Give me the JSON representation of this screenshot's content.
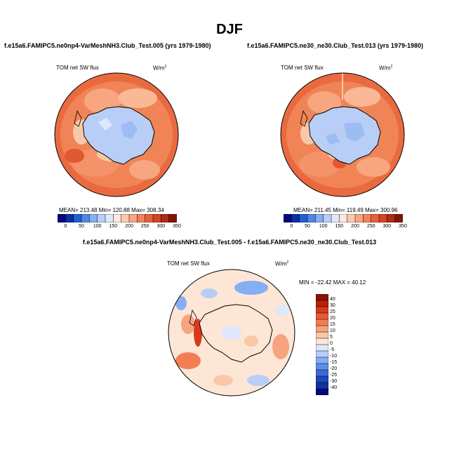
{
  "page": {
    "title": "DJF"
  },
  "panels": {
    "left": {
      "title": "f.e15a6.FAMIPC5.ne0np4-VarMeshNH3.Club_Test.005 (yrs 1979-1980)",
      "variable": "TOM net SW flux",
      "units_base": "W/m",
      "units_exp": "2",
      "stats": "MEAN= 213.48  Min= 120.88  Max= 308.34"
    },
    "right": {
      "title": "f.e15a6.FAMIPC5.ne30_ne30.Club_Test.013 (yrs 1979-1980)",
      "variable": "TOM net SW flux",
      "units_base": "W/m",
      "units_exp": "2",
      "stats": "MEAN= 211.45  Min= 119.49  Max= 300.96"
    },
    "diff": {
      "title": "f.e15a6.FAMIPC5.ne0np4-VarMeshNH3.Club_Test.005 - f.e15a6.FAMIPC5.ne30_ne30.Club_Test.013",
      "variable": "TOM net SW flux",
      "units_base": "W/m",
      "units_exp": "2",
      "stats": "MIN = -22.42 MAX = 40.12"
    }
  },
  "colorbars": {
    "abs_labels": [
      "0",
      "50",
      "100",
      "150",
      "200",
      "250",
      "300",
      "350"
    ],
    "abs_colors": [
      "#08087a",
      "#0c2ea8",
      "#1f5fd0",
      "#4f86e6",
      "#86aef2",
      "#b8cef7",
      "#dde8fb",
      "#fde8dc",
      "#fbc9ac",
      "#f7a67f",
      "#f2825a",
      "#e8603a",
      "#d24422",
      "#b02c12",
      "#7e1606"
    ],
    "diff_labels": [
      "40",
      "30",
      "25",
      "20",
      "15",
      "10",
      "5",
      "0",
      "-5",
      "-10",
      "-15",
      "-20",
      "-25",
      "-30",
      "-40"
    ],
    "diff_colors": [
      "#8c1004",
      "#b8200c",
      "#d83a1c",
      "#ec5c34",
      "#f27e54",
      "#f6a47e",
      "#f9c8a8",
      "#fde6d6",
      "#dde8fb",
      "#b8cef7",
      "#86aef2",
      "#5e8fe8",
      "#3a6ad8",
      "#1f48c0",
      "#1232a0",
      "#08087a"
    ]
  }
}
